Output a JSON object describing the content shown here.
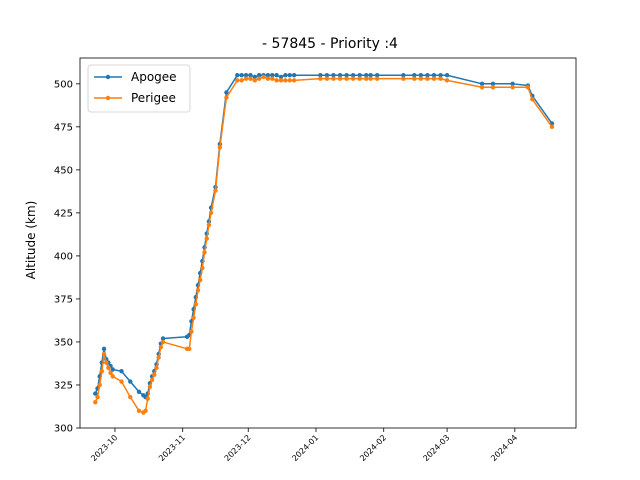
{
  "chart_data": {
    "type": "line",
    "title": "- 57845 - Priority :4",
    "xlabel": "",
    "ylabel": "Altitude (km)",
    "ylim": [
      300,
      515
    ],
    "xlim": [
      "2023-09-15",
      "2024-04-29"
    ],
    "yticks": [
      300,
      325,
      350,
      375,
      400,
      425,
      450,
      475,
      500
    ],
    "xticks": [
      {
        "date": "2023-10-01",
        "label": "2023-10"
      },
      {
        "date": "2023-11-01",
        "label": "2023-11"
      },
      {
        "date": "2023-12-01",
        "label": "2023-12"
      },
      {
        "date": "2024-01-01",
        "label": "2024-01"
      },
      {
        "date": "2024-02-01",
        "label": "2024-02"
      },
      {
        "date": "2024-03-01",
        "label": "2024-03"
      },
      {
        "date": "2024-04-01",
        "label": "2024-04"
      }
    ],
    "grid": false,
    "legend": "upper-left",
    "colors": {
      "Apogee": "#1f77b4",
      "Perigee": "#ff7f0e"
    },
    "series": [
      {
        "name": "Apogee",
        "x": [
          "2023-09-22",
          "2023-09-23",
          "2023-09-24",
          "2023-09-25",
          "2023-09-26",
          "2023-09-27",
          "2023-09-28",
          "2023-09-29",
          "2023-09-30",
          "2023-10-04",
          "2023-10-08",
          "2023-10-12",
          "2023-10-14",
          "2023-10-15",
          "2023-10-16",
          "2023-10-17",
          "2023-10-18",
          "2023-10-19",
          "2023-10-20",
          "2023-10-21",
          "2023-10-22",
          "2023-10-23",
          "2023-11-03",
          "2023-11-04",
          "2023-11-05",
          "2023-11-06",
          "2023-11-07",
          "2023-11-08",
          "2023-11-09",
          "2023-11-10",
          "2023-11-11",
          "2023-11-12",
          "2023-11-13",
          "2023-11-14",
          "2023-11-16",
          "2023-11-18",
          "2023-11-21",
          "2023-11-26",
          "2023-11-28",
          "2023-11-30",
          "2023-12-02",
          "2023-12-04",
          "2023-12-06",
          "2023-12-08",
          "2023-12-10",
          "2023-12-12",
          "2023-12-14",
          "2023-12-16",
          "2023-12-18",
          "2023-12-20",
          "2023-12-22",
          "2024-01-03",
          "2024-01-06",
          "2024-01-09",
          "2024-01-12",
          "2024-01-15",
          "2024-01-18",
          "2024-01-21",
          "2024-01-24",
          "2024-01-26",
          "2024-01-29",
          "2024-02-10",
          "2024-02-15",
          "2024-02-18",
          "2024-02-21",
          "2024-02-24",
          "2024-02-27",
          "2024-03-01",
          "2024-03-17",
          "2024-03-22",
          "2024-03-31",
          "2024-04-07",
          "2024-04-09",
          "2024-04-18"
        ],
        "y": [
          320,
          323,
          330,
          338,
          346,
          340,
          338,
          336,
          334,
          333,
          327,
          321,
          319,
          318,
          320,
          326,
          330,
          333,
          337,
          343,
          349,
          352,
          353,
          354,
          362,
          369,
          376,
          383,
          390,
          397,
          405,
          413,
          420,
          428,
          440,
          465,
          495,
          505,
          505,
          505,
          505,
          504,
          505,
          505,
          505,
          505,
          505,
          504,
          505,
          505,
          505,
          505,
          505,
          505,
          505,
          505,
          505,
          505,
          505,
          505,
          505,
          505,
          505,
          505,
          505,
          505,
          505,
          505,
          500,
          500,
          500,
          499,
          493,
          477
        ]
      },
      {
        "name": "Perigee",
        "x": [
          "2023-09-22",
          "2023-09-23",
          "2023-09-24",
          "2023-09-25",
          "2023-09-26",
          "2023-09-27",
          "2023-09-28",
          "2023-09-29",
          "2023-09-30",
          "2023-10-04",
          "2023-10-08",
          "2023-10-12",
          "2023-10-14",
          "2023-10-15",
          "2023-10-16",
          "2023-10-17",
          "2023-10-18",
          "2023-10-19",
          "2023-10-20",
          "2023-10-21",
          "2023-10-22",
          "2023-10-23",
          "2023-11-03",
          "2023-11-04",
          "2023-11-05",
          "2023-11-06",
          "2023-11-07",
          "2023-11-08",
          "2023-11-09",
          "2023-11-10",
          "2023-11-11",
          "2023-11-12",
          "2023-11-13",
          "2023-11-14",
          "2023-11-16",
          "2023-11-18",
          "2023-11-21",
          "2023-11-26",
          "2023-11-28",
          "2023-11-30",
          "2023-12-02",
          "2023-12-04",
          "2023-12-06",
          "2023-12-08",
          "2023-12-10",
          "2023-12-12",
          "2023-12-14",
          "2023-12-16",
          "2023-12-18",
          "2023-12-20",
          "2023-12-22",
          "2024-01-03",
          "2024-01-06",
          "2024-01-09",
          "2024-01-12",
          "2024-01-15",
          "2024-01-18",
          "2024-01-21",
          "2024-01-24",
          "2024-01-26",
          "2024-01-29",
          "2024-02-10",
          "2024-02-15",
          "2024-02-18",
          "2024-02-21",
          "2024-02-24",
          "2024-02-27",
          "2024-03-01",
          "2024-03-17",
          "2024-03-22",
          "2024-03-31",
          "2024-04-07",
          "2024-04-09",
          "2024-04-18"
        ],
        "y": [
          315,
          318,
          325,
          333,
          343,
          338,
          335,
          332,
          330,
          327,
          318,
          310,
          309,
          310,
          317,
          324,
          328,
          331,
          335,
          341,
          347,
          350,
          346,
          346,
          356,
          364,
          372,
          380,
          386,
          393,
          402,
          410,
          418,
          425,
          438,
          463,
          492,
          502,
          502,
          503,
          503,
          502,
          503,
          504,
          503,
          503,
          502,
          502,
          502,
          502,
          502,
          503,
          503,
          503,
          503,
          503,
          503,
          503,
          503,
          503,
          503,
          503,
          503,
          503,
          503,
          503,
          503,
          502,
          498,
          498,
          498,
          498,
          491,
          475
        ]
      }
    ]
  }
}
